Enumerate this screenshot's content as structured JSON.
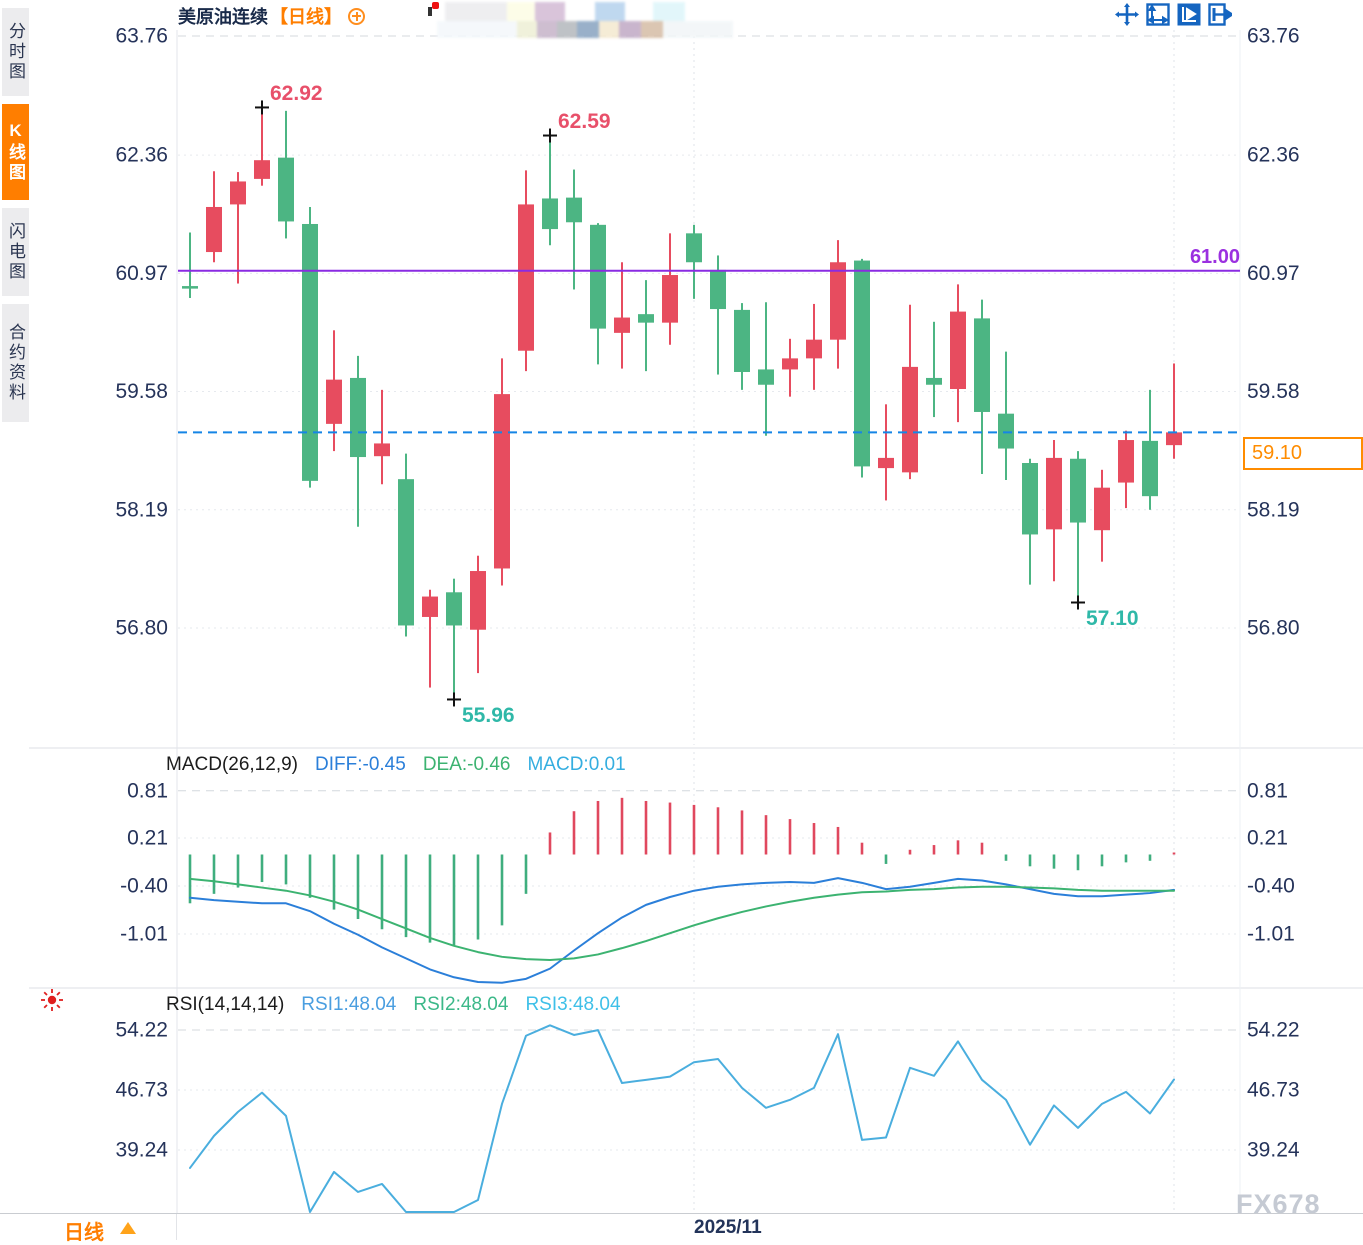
{
  "sidebar": {
    "tabs": [
      {
        "label": "分时图",
        "active": false
      },
      {
        "label": "K线图",
        "active": true
      },
      {
        "label": "闪电图",
        "active": false
      },
      {
        "label": "合约资料",
        "active": false
      }
    ]
  },
  "header": {
    "title": "美原油连续",
    "period": "【日线】"
  },
  "toolbar": {
    "icons": [
      {
        "name": "pan-crosshair-icon",
        "active": false
      },
      {
        "name": "axis-scale-icon",
        "active": false
      },
      {
        "name": "auto-fit-icon",
        "active": true
      },
      {
        "name": "shift-right-icon",
        "active": false
      }
    ]
  },
  "bottom_bar": {
    "period_label": "日线",
    "date_label": "2025/11"
  },
  "watermark": "FX678",
  "macd_panel": {
    "title": "MACD(26,12,9)",
    "diff_label": "DIFF:-0.45",
    "dea_label": "DEA:-0.46",
    "macd_label": "MACD:0.01",
    "levels": [
      "0.81",
      "0.21",
      "-0.40",
      "-1.01"
    ]
  },
  "rsi_panel": {
    "title": "RSI(14,14,14)",
    "rsi1_label": "RSI1:48.04",
    "rsi2_label": "RSI2:48.04",
    "rsi3_label": "RSI3:48.04",
    "levels": [
      "54.22",
      "46.73",
      "39.24"
    ]
  },
  "colors": {
    "up": "#e74c5f",
    "down": "#4cb583",
    "macd_pos": "#e0485e",
    "macd_neg": "#3fae7e",
    "diff_line": "#2b7fd9",
    "dea_line": "#3cb371",
    "rsi_line": "#4aaede",
    "resistance_line": "#8a2be2",
    "current_price_line": "#1585e5",
    "accent_orange": "#ff7e00",
    "axis_text": "#25335a",
    "high_marker_text": "#e8506a",
    "low_marker_text": "#2fb8a8"
  },
  "overlays": {
    "resistance_line": {
      "value": "61.00",
      "price": 61.0
    },
    "current_price": {
      "value": "59.10",
      "price": 59.1
    }
  },
  "chart_data": {
    "type": "candlestick",
    "instrument": "美原油连续",
    "period": "日线",
    "price_axis_levels": [
      63.76,
      62.36,
      60.97,
      59.58,
      58.19,
      56.8
    ],
    "macd_axis_levels": [
      0.81,
      0.21,
      -0.4,
      -1.01
    ],
    "rsi_axis_levels": [
      54.22,
      46.73,
      39.24
    ],
    "x_axis": {
      "tick_label": "2025/11",
      "tick_candle_index": 21,
      "extra_gridline_candle_index": 41
    },
    "candle_format": "[open, high, low, close]",
    "candles": [
      [
        60.82,
        61.45,
        60.68,
        60.79
      ],
      [
        61.22,
        62.17,
        61.1,
        61.75
      ],
      [
        61.78,
        62.16,
        60.85,
        62.05
      ],
      [
        62.08,
        62.92,
        62.0,
        62.3
      ],
      [
        62.33,
        62.88,
        61.38,
        61.58
      ],
      [
        61.55,
        61.75,
        58.45,
        58.53
      ],
      [
        59.2,
        60.3,
        58.88,
        59.72
      ],
      [
        59.74,
        60.0,
        57.99,
        58.81
      ],
      [
        58.82,
        59.6,
        58.49,
        58.97
      ],
      [
        58.55,
        58.85,
        56.7,
        56.83
      ],
      [
        56.93,
        57.25,
        56.1,
        57.17
      ],
      [
        57.22,
        57.38,
        55.96,
        56.83
      ],
      [
        56.78,
        57.65,
        56.27,
        57.47
      ],
      [
        57.5,
        59.97,
        57.3,
        59.55
      ],
      [
        60.06,
        62.18,
        59.82,
        61.78
      ],
      [
        61.85,
        62.59,
        61.3,
        61.49
      ],
      [
        61.86,
        62.19,
        60.78,
        61.57
      ],
      [
        61.54,
        61.56,
        59.9,
        60.32
      ],
      [
        60.27,
        61.1,
        59.85,
        60.45
      ],
      [
        60.49,
        60.89,
        59.82,
        60.39
      ],
      [
        60.39,
        61.44,
        60.13,
        60.95
      ],
      [
        61.44,
        61.54,
        60.67,
        61.1
      ],
      [
        61.01,
        61.18,
        59.78,
        60.55
      ],
      [
        60.54,
        60.62,
        59.6,
        59.81
      ],
      [
        59.84,
        60.63,
        59.06,
        59.66
      ],
      [
        59.84,
        60.2,
        59.52,
        59.97
      ],
      [
        59.97,
        60.61,
        59.6,
        60.19
      ],
      [
        60.19,
        61.36,
        59.85,
        61.1
      ],
      [
        61.12,
        61.14,
        58.57,
        58.7
      ],
      [
        58.68,
        59.43,
        58.3,
        58.8
      ],
      [
        58.63,
        60.6,
        58.55,
        59.87
      ],
      [
        59.74,
        60.4,
        59.28,
        59.66
      ],
      [
        59.61,
        60.84,
        59.22,
        60.52
      ],
      [
        60.44,
        60.66,
        58.61,
        59.34
      ],
      [
        59.32,
        60.05,
        58.54,
        58.91
      ],
      [
        58.74,
        58.79,
        57.31,
        57.9
      ],
      [
        57.96,
        59.01,
        57.35,
        58.8
      ],
      [
        58.79,
        58.88,
        57.1,
        58.04
      ],
      [
        57.95,
        58.66,
        57.58,
        58.45
      ],
      [
        58.51,
        59.12,
        58.21,
        59.01
      ],
      [
        59.0,
        59.6,
        58.19,
        58.35
      ],
      [
        58.95,
        59.91,
        58.79,
        59.1
      ]
    ],
    "macd": {
      "hist": [
        -0.62,
        -0.5,
        -0.42,
        -0.35,
        -0.38,
        -0.55,
        -0.7,
        -0.82,
        -0.95,
        -1.05,
        -1.12,
        -1.15,
        -1.08,
        -0.9,
        -0.5,
        0.28,
        0.55,
        0.68,
        0.72,
        0.68,
        0.66,
        0.63,
        0.6,
        0.56,
        0.5,
        0.45,
        0.4,
        0.35,
        0.15,
        -0.12,
        0.06,
        0.12,
        0.18,
        0.15,
        -0.08,
        -0.15,
        -0.18,
        -0.2,
        -0.15,
        -0.1,
        -0.08,
        0.01
      ],
      "diff": [
        -0.55,
        -0.58,
        -0.6,
        -0.62,
        -0.62,
        -0.72,
        -0.88,
        -1.02,
        -1.18,
        -1.32,
        -1.46,
        -1.56,
        -1.62,
        -1.63,
        -1.58,
        -1.45,
        -1.22,
        -1.0,
        -0.8,
        -0.64,
        -0.54,
        -0.46,
        -0.41,
        -0.38,
        -0.36,
        -0.35,
        -0.36,
        -0.3,
        -0.36,
        -0.44,
        -0.41,
        -0.36,
        -0.31,
        -0.33,
        -0.38,
        -0.44,
        -0.5,
        -0.53,
        -0.53,
        -0.51,
        -0.49,
        -0.45
      ],
      "dea": [
        -0.31,
        -0.34,
        -0.38,
        -0.42,
        -0.46,
        -0.52,
        -0.6,
        -0.7,
        -0.82,
        -0.94,
        -1.06,
        -1.16,
        -1.24,
        -1.3,
        -1.33,
        -1.34,
        -1.32,
        -1.27,
        -1.19,
        -1.1,
        -1.0,
        -0.9,
        -0.81,
        -0.73,
        -0.66,
        -0.6,
        -0.55,
        -0.51,
        -0.48,
        -0.47,
        -0.45,
        -0.44,
        -0.42,
        -0.41,
        -0.41,
        -0.42,
        -0.43,
        -0.45,
        -0.46,
        -0.46,
        -0.46,
        -0.46
      ]
    },
    "rsi": [
      37.0,
      41.0,
      44.0,
      46.4,
      43.5,
      31.5,
      36.5,
      34.0,
      35.0,
      30.5,
      31.5,
      30.8,
      33.0,
      45.0,
      53.5,
      54.8,
      53.6,
      54.2,
      47.6,
      48.0,
      48.4,
      50.2,
      50.6,
      47.0,
      44.5,
      45.5,
      47.0,
      53.7,
      40.5,
      40.8,
      49.5,
      48.5,
      52.8,
      48.0,
      45.5,
      39.9,
      44.8,
      42.0,
      45.0,
      46.5,
      43.8,
      48.04
    ],
    "annotations": [
      {
        "text": "62.92",
        "price": 62.92,
        "candle_index": 3,
        "placement": "above",
        "kind": "high"
      },
      {
        "text": "62.59",
        "price": 62.59,
        "candle_index": 15,
        "placement": "above",
        "kind": "high"
      },
      {
        "text": "55.96",
        "price": 55.96,
        "candle_index": 11,
        "placement": "below",
        "kind": "low"
      },
      {
        "text": "57.10",
        "price": 57.1,
        "candle_index": 37,
        "placement": "below",
        "kind": "low"
      }
    ]
  }
}
